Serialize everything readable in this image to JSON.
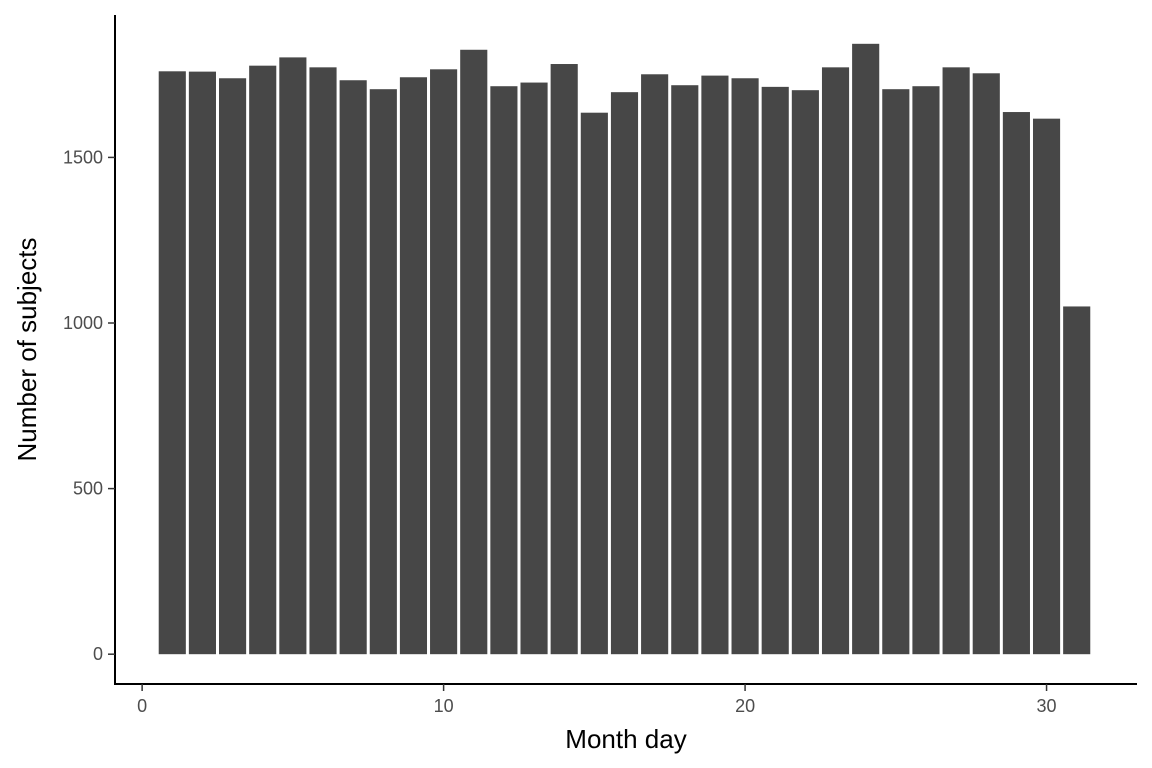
{
  "chart_data": {
    "type": "bar",
    "title": "",
    "xlabel": "Month day",
    "ylabel": "Number of subjects",
    "x": [
      1,
      2,
      3,
      4,
      5,
      6,
      7,
      8,
      9,
      10,
      11,
      12,
      13,
      14,
      15,
      16,
      17,
      18,
      19,
      20,
      21,
      22,
      23,
      24,
      25,
      26,
      27,
      28,
      29,
      30,
      31
    ],
    "values": [
      1760,
      1759,
      1739,
      1777,
      1802,
      1772,
      1733,
      1706,
      1742,
      1766,
      1825,
      1715,
      1726,
      1782,
      1635,
      1697,
      1751,
      1718,
      1747,
      1739,
      1713,
      1703,
      1772,
      1843,
      1706,
      1715,
      1772,
      1754,
      1637,
      1617,
      1050
    ],
    "xlim": [
      -0.9,
      33
    ],
    "ylim": [
      -90,
      1930
    ],
    "xticks": [
      0,
      10,
      20,
      30
    ],
    "xtick_labels": [
      "0",
      "10",
      "20",
      "30"
    ],
    "yticks": [
      0,
      500,
      1000,
      1500
    ],
    "ytick_labels": [
      "0",
      "500",
      "1000",
      "1500"
    ],
    "grid": false,
    "legend": "none",
    "bar_color": "#474747",
    "axis_color": "#000000",
    "tick_label_color": "#4d4d4d"
  }
}
